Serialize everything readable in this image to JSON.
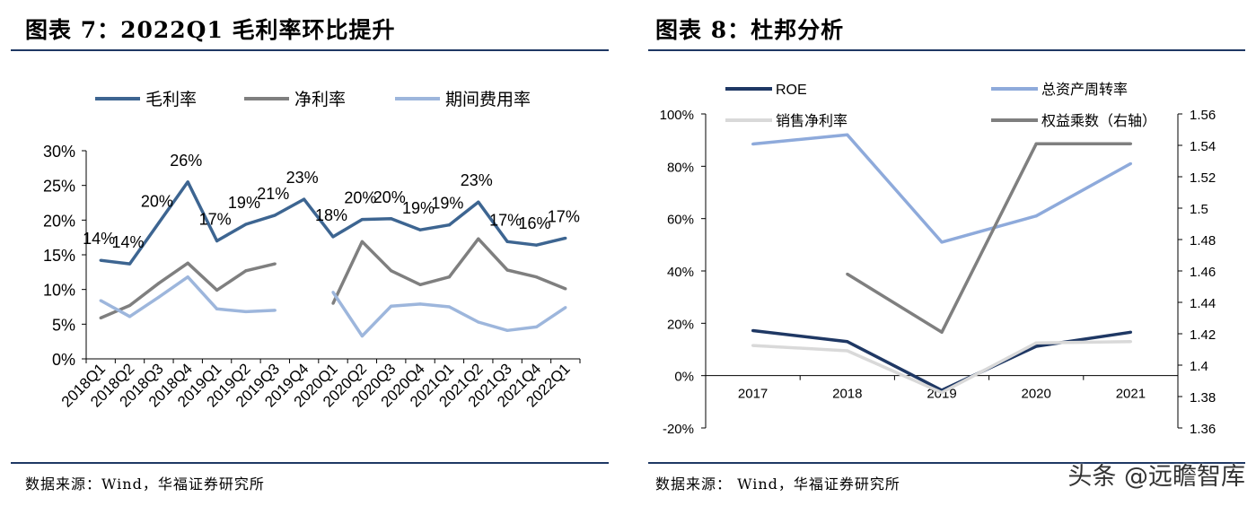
{
  "left": {
    "title": "图表 7：2022Q1 毛利率环比提升",
    "source": "数据来源：Wind，华福证券研究所"
  },
  "right": {
    "title": "图表 8：杜邦分析",
    "source": "数据来源：  Wind，华福证券研究所"
  },
  "watermark": "头条 @远瞻智库",
  "chart_data": [
    {
      "type": "line",
      "categories": [
        "2018Q1",
        "2018Q2",
        "2018Q3",
        "2018Q4",
        "2019Q1",
        "2019Q2",
        "2019Q3",
        "2019Q4",
        "2020Q1",
        "2020Q2",
        "2020Q3",
        "2020Q4",
        "2021Q1",
        "2021Q2",
        "2021Q3",
        "2021Q4",
        "2022Q1"
      ],
      "yticks": [
        "0%",
        "5%",
        "10%",
        "15%",
        "20%",
        "25%",
        "30%"
      ],
      "ylim": [
        0,
        30
      ],
      "legend_position": "top",
      "grid": false,
      "series": [
        {
          "name": "毛利率",
          "color": "#3d6591",
          "values": [
            14.2,
            13.7,
            19.6,
            25.5,
            17.0,
            19.4,
            20.7,
            23.0,
            17.6,
            20.1,
            20.2,
            18.6,
            19.3,
            22.6,
            16.9,
            16.4,
            17.4
          ],
          "labels": [
            "14%",
            "14%",
            "20%",
            "26%",
            "17%",
            "19%",
            "21%",
            "23%",
            "18%",
            "20%",
            "20%",
            "19%",
            "19%",
            "23%",
            "17%",
            "16%",
            "17%"
          ]
        },
        {
          "name": "净利率",
          "color": "#7f7f7f",
          "values": [
            5.9,
            7.7,
            10.9,
            13.8,
            9.9,
            12.7,
            13.7,
            null,
            8.0,
            16.9,
            12.7,
            10.7,
            11.8,
            17.3,
            12.8,
            11.8,
            10.1
          ]
        },
        {
          "name": "期间费用率",
          "color": "#9db6dc",
          "values": [
            8.4,
            6.1,
            8.9,
            11.8,
            7.2,
            6.8,
            7.0,
            null,
            9.6,
            3.3,
            7.6,
            7.9,
            7.5,
            5.3,
            4.1,
            4.6,
            7.4
          ]
        }
      ]
    },
    {
      "type": "line",
      "categories": [
        "2017",
        "2018",
        "2019",
        "2020",
        "2021"
      ],
      "yticks_left": [
        "-20%",
        "0%",
        "20%",
        "40%",
        "60%",
        "80%",
        "100%"
      ],
      "ylim_left": [
        -20,
        100
      ],
      "yticks_right": [
        "1.36",
        "1.38",
        "1.4",
        "1.42",
        "1.44",
        "1.46",
        "1.48",
        "1.5",
        "1.52",
        "1.54",
        "1.56"
      ],
      "ylim_right": [
        1.36,
        1.56
      ],
      "legend_position": "top",
      "grid": false,
      "series": [
        {
          "name": "ROE",
          "color": "#1f3864",
          "axis": "left",
          "values": [
            17.2,
            13.0,
            -5.6,
            11.2,
            16.6
          ]
        },
        {
          "name": "总资产周转率",
          "color": "#8eaadb",
          "axis": "left",
          "values": [
            88.5,
            92.0,
            51.0,
            61.0,
            81.0
          ]
        },
        {
          "name": "销售净利率",
          "color": "#d9d9d9",
          "axis": "left",
          "values": [
            11.5,
            9.5,
            -6.5,
            12.5,
            13.0
          ]
        },
        {
          "name": "权益乘数（右轴）",
          "color": "#7f7f7f",
          "axis": "right",
          "values": [
            null,
            1.458,
            1.421,
            1.541,
            1.541
          ]
        }
      ]
    }
  ]
}
